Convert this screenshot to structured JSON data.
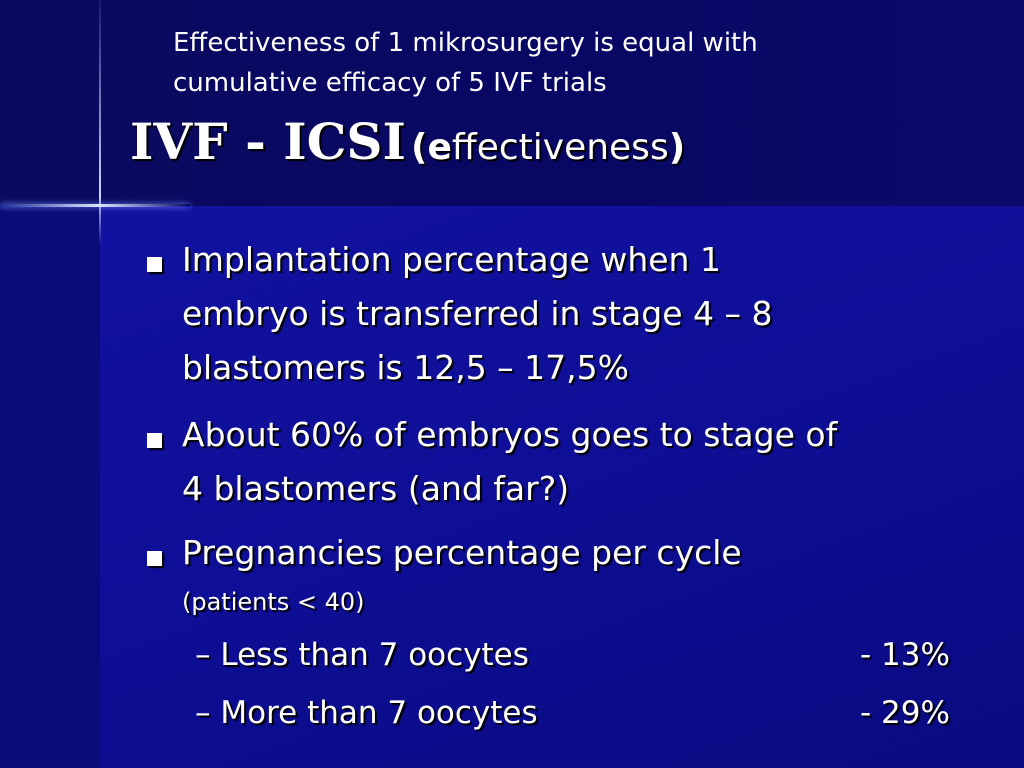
{
  "slide": {
    "note": {
      "lines": [
        "Effectiveness of 1 mikrosurgery is equal with",
        "cumulative efficacy of 5 IVF trials"
      ]
    },
    "title": {
      "main": "IVF - ICSI",
      "open": "(e",
      "rest": "ffectiveness",
      "close": ")"
    },
    "bullets": [
      {
        "lines": [
          "Implantation percentage when 1",
          "embryo is transferred in stage 4 – 8",
          "blastomers is 12,5 – 17,5%"
        ]
      },
      {
        "lines": [
          "About 60% of embryos goes to stage of",
          "4 blastomers (and far?)"
        ]
      },
      {
        "lines": [
          "Pregnancies percentage per cycle"
        ],
        "note": "(patients < 40)"
      }
    ],
    "sub_items": [
      {
        "label": "Less than 7 oocytes",
        "value": "- 13%"
      },
      {
        "label": "More than 7 oocytes",
        "value": "- 29%"
      }
    ]
  }
}
